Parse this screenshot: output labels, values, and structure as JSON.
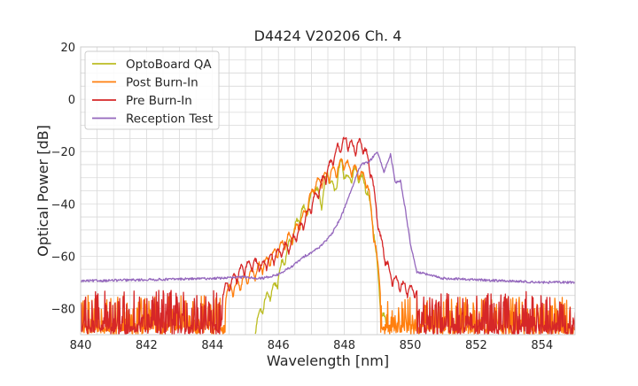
{
  "chart_data": {
    "type": "line",
    "title": "D4424 V20206 Ch. 4",
    "xlabel": "Wavelength [nm]",
    "ylabel": "Optical Power [dB]",
    "xlim": [
      840,
      855
    ],
    "ylim": [
      -90,
      20
    ],
    "xticks": [
      840,
      842,
      844,
      846,
      848,
      850,
      852,
      854
    ],
    "yticks": [
      20,
      0,
      -20,
      -40,
      -60,
      -80
    ],
    "ytick_labels": [
      "20",
      "0",
      "−20",
      "−40",
      "−60",
      "−80"
    ],
    "grid": true,
    "legend_position": "top-left",
    "series": [
      {
        "name": "OptoBoard QA",
        "color": "#bcbd22",
        "style": "noisy",
        "noise_floor_range": [
          845.3,
          849.3
        ],
        "noise_floor_spikes": [
          -90,
          -75
        ],
        "x": [
          845.3,
          845.5,
          845.7,
          845.9,
          846.1,
          846.3,
          846.5,
          846.7,
          846.9,
          847.1,
          847.3,
          847.5,
          847.7,
          847.9,
          848.1,
          848.3,
          848.5,
          848.7,
          848.9,
          849.1,
          849.3
        ],
        "y": [
          -85,
          -78,
          -73,
          -70,
          -62,
          -55,
          -48,
          -41,
          -40,
          -31,
          -38,
          -26,
          -34,
          -22,
          -30,
          -26,
          -28,
          -33,
          -48,
          -78,
          -86
        ]
      },
      {
        "name": "Post Burn-In",
        "color": "#ff7f0e",
        "style": "noisy",
        "noise_floor_range": [
          840,
          855
        ],
        "noise_floor_spikes": [
          -90,
          -75
        ],
        "x": [
          844.4,
          844.7,
          845,
          845.3,
          845.6,
          845.9,
          846.2,
          846.5,
          846.8,
          847.1,
          847.4,
          847.7,
          847.95,
          848.2,
          848.45,
          848.7,
          848.95,
          849.1
        ],
        "y": [
          -72,
          -70,
          -67,
          -64,
          -61,
          -57,
          -53,
          -49,
          -42,
          -31,
          -28,
          -26,
          -22,
          -25,
          -26,
          -30,
          -55,
          -72
        ]
      },
      {
        "name": "Pre Burn-In",
        "color": "#d62728",
        "style": "noisy",
        "noise_floor_range": [
          840,
          855
        ],
        "noise_floor_spikes": [
          -90,
          -73
        ],
        "x": [
          844.3,
          844.6,
          844.9,
          845.2,
          845.5,
          845.8,
          846.1,
          846.4,
          846.7,
          847,
          847.3,
          847.55,
          847.8,
          848.05,
          848.3,
          848.55,
          848.8,
          849.1,
          849.4,
          849.8,
          850.2
        ],
        "y": [
          -72,
          -68,
          -63,
          -61,
          -62,
          -59,
          -56,
          -53,
          -47,
          -39,
          -31,
          -24,
          -17,
          -14,
          -17,
          -15,
          -25,
          -52,
          -66,
          -70,
          -72
        ]
      },
      {
        "name": "Reception Test",
        "color": "#9467bd",
        "style": "smooth",
        "x": [
          840,
          842,
          844,
          845,
          845.5,
          846,
          846.4,
          846.8,
          847.2,
          847.6,
          847.9,
          848.2,
          848.5,
          848.75,
          849,
          849.2,
          849.4,
          849.55,
          849.7,
          849.85,
          850,
          850.2,
          851,
          852,
          853,
          854,
          855
        ],
        "y": [
          -69.5,
          -69,
          -68.5,
          -68,
          -68.5,
          -67,
          -64,
          -60,
          -57,
          -52,
          -45,
          -35,
          -25,
          -24,
          -20,
          -28,
          -21,
          -32,
          -31,
          -42,
          -55,
          -66,
          -68.5,
          -69,
          -69.5,
          -70,
          -70
        ]
      }
    ]
  }
}
